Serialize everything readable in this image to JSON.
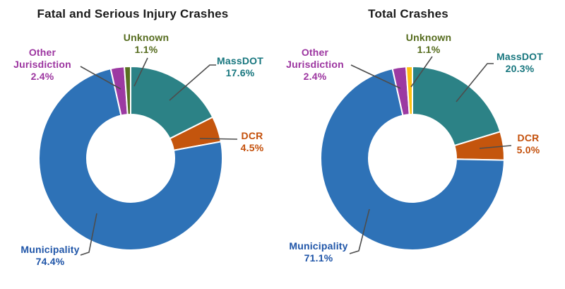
{
  "figure": {
    "kind": "side-by-side donut charts",
    "background_color": "#ffffff",
    "leader_line_color": "#4d4d4d",
    "slice_gap_color": "#ffffff"
  },
  "chart_data": [
    {
      "type": "pie",
      "subtype": "donut",
      "title": "Fatal and Serious Injury Crashes",
      "categories": [
        "MassDOT",
        "DCR",
        "Municipality",
        "Other Jurisdiction",
        "Unknown"
      ],
      "values": [
        17.6,
        4.5,
        74.4,
        2.4,
        1.1
      ],
      "value_unit": "%",
      "slugs": [
        "massdot",
        "dcr",
        "municipality",
        "other_jurisdiction",
        "unknown"
      ],
      "colors": [
        "#2c8286",
        "#c4550d",
        "#2e72b7",
        "#9c3aa2",
        "#587021"
      ],
      "label_colors": [
        "#17767e",
        "#c4500b",
        "#1f55a8",
        "#9c35a0",
        "#556b1d"
      ],
      "start_angle_deg": 0,
      "direction": "clockwise",
      "inner_radius_ratio": 0.48,
      "legend": "none",
      "labels": {
        "massdot": {
          "name": "MassDOT",
          "value": "17.6%"
        },
        "dcr": {
          "name": "DCR",
          "value": "4.5%"
        },
        "municipality": {
          "name": "Municipality",
          "value": "74.4%"
        },
        "other_jurisdiction": {
          "name": "Other Jurisdiction",
          "value": "2.4%"
        },
        "unknown": {
          "name": "Unknown",
          "value": "1.1%"
        }
      }
    },
    {
      "type": "pie",
      "subtype": "donut",
      "title": "Total Crashes",
      "categories": [
        "MassDOT",
        "DCR",
        "Municipality",
        "Other Jurisdiction",
        "Unknown"
      ],
      "values": [
        20.3,
        5.0,
        71.1,
        2.4,
        1.1
      ],
      "value_unit": "%",
      "slugs": [
        "massdot",
        "dcr",
        "municipality",
        "other_jurisdiction",
        "unknown"
      ],
      "colors": [
        "#2c8286",
        "#c4550d",
        "#2e72b7",
        "#9c3aa2",
        "#ffc010"
      ],
      "label_colors": [
        "#17767e",
        "#c4500b",
        "#1f55a8",
        "#9c35a0",
        "#556b1d"
      ],
      "start_angle_deg": 0,
      "direction": "clockwise",
      "inner_radius_ratio": 0.48,
      "legend": "none",
      "labels": {
        "massdot": {
          "name": "MassDOT",
          "value": "20.3%"
        },
        "dcr": {
          "name": "DCR",
          "value": "5.0%"
        },
        "municipality": {
          "name": "Municipality",
          "value": "71.1%"
        },
        "other_jurisdiction": {
          "name": "Other Jurisdiction",
          "value": "2.4%"
        },
        "unknown": {
          "name": "Unknown",
          "value": "1.1%"
        }
      }
    }
  ]
}
